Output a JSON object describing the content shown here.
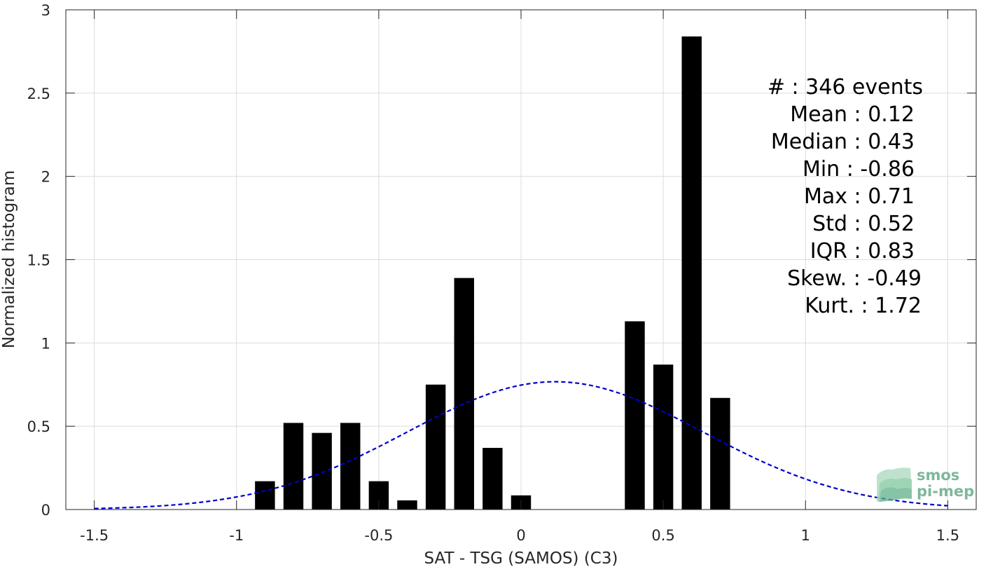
{
  "chart_data": {
    "type": "bar",
    "title": "",
    "xlabel": "SAT - TSG (SAMOS) (C3)",
    "ylabel": "Normalized histogram",
    "xlim": [
      -1.6,
      1.6
    ],
    "ylim": [
      0,
      3
    ],
    "grid": true,
    "xticks": [
      -1.5,
      -1,
      -0.5,
      0,
      0.5,
      1,
      1.5
    ],
    "xtick_labels": [
      "-1.5",
      "-1",
      "-0.5",
      "0",
      "0.5",
      "1",
      "1.5"
    ],
    "yticks": [
      0,
      0.5,
      1,
      1.5,
      2,
      2.5,
      3
    ],
    "ytick_labels": [
      "0",
      "0.5",
      "1",
      "1.5",
      "2",
      "2.5",
      "3"
    ],
    "bar_width": 0.07,
    "bars": [
      {
        "x": -0.9,
        "value": 0.17
      },
      {
        "x": -0.8,
        "value": 0.52
      },
      {
        "x": -0.7,
        "value": 0.46
      },
      {
        "x": -0.6,
        "value": 0.52
      },
      {
        "x": -0.5,
        "value": 0.17
      },
      {
        "x": -0.4,
        "value": 0.055
      },
      {
        "x": -0.3,
        "value": 0.75
      },
      {
        "x": -0.2,
        "value": 1.39
      },
      {
        "x": -0.1,
        "value": 0.37
      },
      {
        "x": 0.0,
        "value": 0.085
      },
      {
        "x": 0.4,
        "value": 1.13
      },
      {
        "x": 0.5,
        "value": 0.87
      },
      {
        "x": 0.6,
        "value": 2.84
      },
      {
        "x": 0.7,
        "value": 0.67
      }
    ],
    "fit_curve": {
      "type": "gaussian",
      "mean": 0.12,
      "std": 0.52,
      "x_range": [
        -1.5,
        1.5
      ],
      "color": "#0000cc",
      "style": "dashed"
    },
    "bar_color": "#000000",
    "stats": [
      "#  : 346 events",
      "Mean : 0.12",
      "Median : 0.43",
      "Min : -0.86",
      "Max : 0.71",
      "Std : 0.52",
      "IQR : 0.83",
      "Skew. : -0.49",
      "Kurt. : 1.72"
    ]
  },
  "logo": {
    "line1": "smos",
    "line2": "pi-mep",
    "color": "#7fb79a"
  }
}
